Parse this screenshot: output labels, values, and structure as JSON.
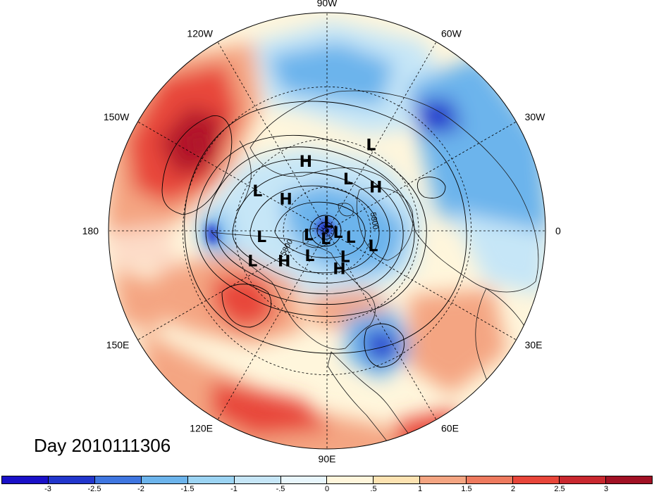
{
  "map": {
    "projection": "north-polar-stereographic",
    "field_colors": {
      "deep_red": "#b2182b",
      "red": "#e8463a",
      "salmon": "#f4a582",
      "tan": "#fddbc7",
      "pale": "#fff6dc",
      "light_blue": "#c6e6f7",
      "blue": "#6cb4ec",
      "deep_blue": "#2236cc"
    },
    "longitude_labels": [
      {
        "lon": 90,
        "text": "90E"
      },
      {
        "lon": 60,
        "text": "60E"
      },
      {
        "lon": 30,
        "text": "30E"
      },
      {
        "lon": 0,
        "text": "0"
      },
      {
        "lon": -30,
        "text": "30W"
      },
      {
        "lon": -60,
        "text": "60W"
      },
      {
        "lon": -90,
        "text": "90W"
      },
      {
        "lon": -120,
        "text": "120W"
      },
      {
        "lon": -150,
        "text": "150W"
      },
      {
        "lon": 180,
        "text": "180"
      },
      {
        "lon": 150,
        "text": "150E"
      },
      {
        "lon": 120,
        "text": "120E"
      }
    ],
    "pressure_centers": [
      {
        "type": "H",
        "lon": 72,
        "lat": 55
      },
      {
        "type": "L",
        "lon": 55,
        "lat": 62
      },
      {
        "type": "L",
        "lon": 18,
        "lat": 48
      },
      {
        "type": "L",
        "lon": 15,
        "lat": 68
      },
      {
        "type": "L",
        "lon": 125,
        "lat": 63
      },
      {
        "type": "H",
        "lon": 145,
        "lat": 45
      },
      {
        "type": "L",
        "lon": 158,
        "lat": 25
      },
      {
        "type": "L",
        "lon": 175,
        "lat": 35
      },
      {
        "type": "L",
        "lon": 100,
        "lat": 83
      },
      {
        "type": "L",
        "lon": 7,
        "lat": 80
      },
      {
        "type": "L",
        "lon": 168,
        "lat": 73
      },
      {
        "type": "L",
        "lon": -80,
        "lat": 82
      },
      {
        "type": "H",
        "lon": -142,
        "lat": 45
      },
      {
        "type": "L",
        "lon": -150,
        "lat": 25
      },
      {
        "type": "H",
        "lon": -107,
        "lat": 30
      },
      {
        "type": "L",
        "lon": -68,
        "lat": 42
      },
      {
        "type": "H",
        "lon": -42,
        "lat": 35
      },
      {
        "type": "L",
        "lon": -63,
        "lat": 15
      }
    ],
    "contour_labels": [
      {
        "text": "5800",
        "lon": 155,
        "lat": 53
      },
      {
        "text": "5800",
        "lon": -12,
        "lat": 50
      }
    ]
  },
  "title": {
    "day_label": "Day 2010111306"
  },
  "colorbar": {
    "colors": [
      "#1a10c8",
      "#2236cc",
      "#3f76e0",
      "#6cb4ec",
      "#9cd4f3",
      "#c6e6f7",
      "#e8f6fc",
      "#fff6dc",
      "#fde3b2",
      "#f4a582",
      "#ee7a5e",
      "#e8463a",
      "#c9282f",
      "#a11124"
    ],
    "tick_labels": [
      "-3",
      "-2.5",
      "-2",
      "-1.5",
      "-1",
      "-.5",
      "0",
      ".5",
      "1",
      "1.5",
      "2",
      "2.5",
      "3"
    ]
  }
}
